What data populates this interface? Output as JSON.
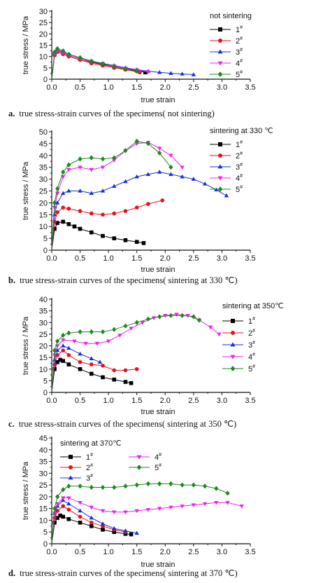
{
  "chart_data": [
    {
      "type": "line",
      "ylabel": "true stress / MPa",
      "xlabel": "true strain",
      "xlim": [
        0,
        3.5
      ],
      "ylim": [
        0,
        30
      ],
      "xticks": [
        "0.0",
        "0.5",
        "1.0",
        "1.5",
        "2.0",
        "2.5",
        "3.0",
        "3.5"
      ],
      "yticks": [
        "0",
        "5",
        "10",
        "15",
        "20",
        "25",
        "30"
      ],
      "legend_title": "not sintering",
      "legend_position": "top-right",
      "caption_label": "a.",
      "caption": "true stress-strain curves of the specimens( not sintering)",
      "series": [
        {
          "name": "1",
          "x": [
            0.0,
            0.05,
            0.1,
            0.2,
            0.3,
            0.5,
            0.7,
            0.9,
            1.1,
            1.3,
            1.5,
            1.65
          ],
          "y": [
            0,
            11.0,
            12.5,
            11.5,
            10.5,
            9.0,
            7.5,
            6.5,
            5.5,
            4.5,
            3.8,
            3.0
          ]
        },
        {
          "name": "2",
          "x": [
            0.0,
            0.05,
            0.1,
            0.2,
            0.3,
            0.5,
            0.7,
            0.9,
            1.1,
            1.3,
            1.55
          ],
          "y": [
            0,
            10.5,
            12.0,
            11.0,
            10.0,
            8.5,
            7.0,
            6.0,
            5.0,
            4.2,
            3.0
          ]
        },
        {
          "name": "3",
          "x": [
            0.0,
            0.05,
            0.1,
            0.2,
            0.3,
            0.5,
            0.7,
            0.9,
            1.1,
            1.3,
            1.5,
            1.7,
            1.9,
            2.1,
            2.3,
            2.5
          ],
          "y": [
            0,
            11.5,
            13.0,
            12.0,
            11.0,
            9.5,
            8.0,
            7.0,
            6.0,
            5.0,
            4.2,
            3.5,
            3.0,
            2.6,
            2.3,
            2.0
          ]
        },
        {
          "name": "4",
          "x": [
            0.0,
            0.05,
            0.1,
            0.2,
            0.3,
            0.5,
            0.7,
            0.9,
            1.1,
            1.3,
            1.5,
            1.7
          ],
          "y": [
            0,
            11.0,
            12.5,
            11.5,
            10.5,
            9.0,
            7.8,
            6.8,
            5.8,
            4.8,
            4.0,
            3.2
          ]
        },
        {
          "name": "5",
          "x": [
            0.0,
            0.05,
            0.1,
            0.2,
            0.3,
            0.5,
            0.7,
            0.9,
            1.1,
            1.3,
            1.5
          ],
          "y": [
            0,
            12.0,
            13.5,
            12.5,
            11.0,
            9.5,
            8.0,
            6.8,
            5.5,
            4.5,
            3.5
          ]
        }
      ]
    },
    {
      "type": "line",
      "ylabel": "true stress / MPa",
      "xlabel": "true strain",
      "xlim": [
        0,
        3.5
      ],
      "ylim": [
        0,
        50
      ],
      "xticks": [
        "0.0",
        "0.5",
        "1.0",
        "1.5",
        "2.0",
        "2.5",
        "3.0",
        "3.5"
      ],
      "yticks": [
        "0",
        "5",
        "10",
        "15",
        "20",
        "25",
        "30",
        "35",
        "40",
        "45",
        "50"
      ],
      "legend_title": "sintering at 330 ℃",
      "legend_position": "top-right",
      "caption_label": "b.",
      "caption": "true stress-strain curves of the specimens( sintering at 330 ℃)",
      "series": [
        {
          "name": "1",
          "x": [
            0.0,
            0.05,
            0.1,
            0.2,
            0.3,
            0.4,
            0.5,
            0.7,
            0.9,
            1.1,
            1.3,
            1.5,
            1.62
          ],
          "y": [
            0,
            9.0,
            11.5,
            12.0,
            11.0,
            10.0,
            9.0,
            7.5,
            6.0,
            5.0,
            4.2,
            3.5,
            3.0
          ]
        },
        {
          "name": "2",
          "x": [
            0.0,
            0.05,
            0.1,
            0.2,
            0.3,
            0.5,
            0.7,
            0.9,
            1.1,
            1.3,
            1.5,
            1.7,
            1.95
          ],
          "y": [
            0,
            12.0,
            16.0,
            18.0,
            17.5,
            16.5,
            15.5,
            15.0,
            15.5,
            16.5,
            18.0,
            19.5,
            21.0
          ]
        },
        {
          "name": "3",
          "x": [
            0.0,
            0.05,
            0.1,
            0.2,
            0.3,
            0.5,
            0.7,
            0.9,
            1.1,
            1.3,
            1.5,
            1.7,
            1.9,
            2.1,
            2.3,
            2.5,
            2.7,
            2.9,
            3.08
          ],
          "y": [
            0,
            15.0,
            20.0,
            24.0,
            25.0,
            25.0,
            24.0,
            25.0,
            27.0,
            29.0,
            31.0,
            32.0,
            33.0,
            32.0,
            31.0,
            30.0,
            28.0,
            25.5,
            23.0
          ]
        },
        {
          "name": "4",
          "x": [
            0.0,
            0.05,
            0.1,
            0.2,
            0.3,
            0.5,
            0.7,
            0.9,
            1.1,
            1.3,
            1.5,
            1.7,
            1.9,
            2.1,
            2.3
          ],
          "y": [
            0,
            18.0,
            24.0,
            31.0,
            34.0,
            35.0,
            34.0,
            35.0,
            38.0,
            42.0,
            45.0,
            45.5,
            43.0,
            40.0,
            35.0
          ]
        },
        {
          "name": "5",
          "x": [
            0.0,
            0.05,
            0.1,
            0.2,
            0.3,
            0.5,
            0.7,
            0.9,
            1.1,
            1.3,
            1.5,
            1.7,
            1.9,
            2.1
          ],
          "y": [
            0,
            20.0,
            26.0,
            33.0,
            36.0,
            38.5,
            39.0,
            38.5,
            39.0,
            42.0,
            46.0,
            45.0,
            41.0,
            35.0
          ]
        }
      ]
    },
    {
      "type": "line",
      "ylabel": "true stress / MPa",
      "xlabel": "true strain",
      "xlim": [
        0,
        3.5
      ],
      "ylim": [
        0,
        40
      ],
      "xticks": [
        "0.0",
        "0.5",
        "1.0",
        "1.5",
        "2.0",
        "2.5",
        "3.0",
        "3.5"
      ],
      "yticks": [
        "0",
        "5",
        "10",
        "15",
        "20",
        "25",
        "30",
        "35",
        "40"
      ],
      "legend_title": "sintering at 350℃",
      "legend_position": "right",
      "caption_label": "c.",
      "caption": "true stress-strain curves of the specimens( sintering at 350 ℃)",
      "series": [
        {
          "name": "1",
          "x": [
            0.0,
            0.05,
            0.1,
            0.15,
            0.2,
            0.3,
            0.5,
            0.7,
            0.9,
            1.1,
            1.3,
            1.4
          ],
          "y": [
            0,
            10.0,
            13.0,
            14.0,
            13.5,
            12.0,
            10.0,
            8.0,
            6.5,
            5.5,
            4.5,
            4.0
          ]
        },
        {
          "name": "2",
          "x": [
            0.0,
            0.05,
            0.1,
            0.2,
            0.3,
            0.5,
            0.7,
            0.9,
            1.1,
            1.3,
            1.5
          ],
          "y": [
            0,
            12.0,
            16.0,
            18.0,
            16.0,
            13.0,
            12.0,
            11.5,
            9.5,
            9.5,
            10.0
          ]
        },
        {
          "name": "3",
          "x": [
            0.0,
            0.05,
            0.1,
            0.2,
            0.3,
            0.5,
            0.7,
            0.85
          ],
          "y": [
            0,
            14.0,
            18.0,
            20.0,
            19.0,
            16.5,
            14.5,
            13.0
          ]
        },
        {
          "name": "4",
          "x": [
            0.0,
            0.05,
            0.1,
            0.2,
            0.4,
            0.6,
            0.8,
            1.0,
            1.2,
            1.4,
            1.6,
            1.8,
            2.0,
            2.2,
            2.4,
            2.6,
            2.8,
            2.95
          ],
          "y": [
            0,
            16.0,
            20.0,
            22.5,
            22.0,
            21.0,
            21.0,
            22.0,
            24.5,
            27.5,
            30.0,
            32.0,
            33.0,
            33.5,
            33.0,
            31.0,
            28.0,
            25.0
          ]
        },
        {
          "name": "5",
          "x": [
            0.0,
            0.05,
            0.1,
            0.2,
            0.3,
            0.5,
            0.7,
            0.9,
            1.1,
            1.3,
            1.5,
            1.7,
            1.9,
            2.1,
            2.3,
            2.5,
            2.6
          ],
          "y": [
            0,
            18.0,
            22.0,
            24.5,
            25.5,
            26.0,
            26.0,
            26.0,
            27.0,
            28.5,
            30.0,
            31.5,
            32.5,
            33.0,
            33.0,
            32.5,
            31.0
          ]
        }
      ]
    },
    {
      "type": "line",
      "ylabel": "true stress / MPa",
      "xlabel": "true strain",
      "xlim": [
        0,
        3.5
      ],
      "ylim": [
        0,
        45
      ],
      "xticks": [
        "0.0",
        "0.5",
        "1.0",
        "1.5",
        "2.0",
        "2.5",
        "3.0",
        "3.5"
      ],
      "yticks": [
        "0",
        "5",
        "10",
        "15",
        "20",
        "25",
        "30",
        "35",
        "40",
        "45"
      ],
      "legend_title": "sintering at 370℃",
      "legend_position": "top-left",
      "caption_label": "d.",
      "caption": "true stress-strain curves of the specimens( sintering at 370 ℃)",
      "series": [
        {
          "name": "1",
          "x": [
            0.0,
            0.05,
            0.1,
            0.15,
            0.2,
            0.3,
            0.5,
            0.7,
            0.9,
            1.1,
            1.3,
            1.4
          ],
          "y": [
            0,
            9.0,
            11.0,
            12.0,
            11.5,
            10.5,
            9.0,
            7.5,
            6.0,
            5.0,
            4.2,
            4.0
          ]
        },
        {
          "name": "2",
          "x": [
            0.0,
            0.05,
            0.1,
            0.2,
            0.3,
            0.5,
            0.7,
            0.9,
            1.1,
            1.3
          ],
          "y": [
            0,
            11.0,
            14.0,
            16.0,
            14.5,
            11.5,
            9.0,
            7.5,
            6.0,
            5.0
          ]
        },
        {
          "name": "3",
          "x": [
            0.0,
            0.05,
            0.1,
            0.2,
            0.3,
            0.5,
            0.7,
            0.9,
            1.1,
            1.3,
            1.5
          ],
          "y": [
            0,
            13.0,
            16.0,
            18.5,
            17.0,
            14.0,
            11.0,
            8.5,
            6.5,
            5.5,
            4.5
          ]
        },
        {
          "name": "4",
          "x": [
            0.0,
            0.05,
            0.1,
            0.2,
            0.3,
            0.5,
            0.7,
            0.9,
            1.1,
            1.3,
            1.5,
            1.7,
            1.9,
            2.1,
            2.3,
            2.5,
            2.7,
            2.9,
            3.1,
            3.35
          ],
          "y": [
            0,
            13.0,
            17.0,
            19.5,
            19.5,
            17.5,
            15.5,
            14.0,
            13.5,
            13.5,
            14.0,
            14.5,
            15.0,
            15.5,
            16.0,
            16.5,
            17.0,
            17.5,
            17.5,
            16.0
          ]
        },
        {
          "name": "5",
          "x": [
            0.0,
            0.05,
            0.1,
            0.2,
            0.3,
            0.5,
            0.7,
            0.9,
            1.1,
            1.3,
            1.5,
            1.7,
            1.9,
            2.1,
            2.3,
            2.5,
            2.7,
            2.9,
            3.1
          ],
          "y": [
            0,
            15.0,
            20.0,
            23.0,
            24.5,
            24.5,
            24.0,
            24.0,
            24.0,
            24.5,
            25.0,
            25.5,
            25.5,
            25.5,
            25.0,
            25.0,
            24.5,
            23.5,
            21.5
          ]
        }
      ]
    }
  ],
  "styles": [
    {
      "color": "#000000",
      "marker": "square"
    },
    {
      "color": "#e8101a",
      "marker": "circle"
    },
    {
      "color": "#1530d8",
      "marker": "triangle-up"
    },
    {
      "color": "#f020e8",
      "marker": "triangle-down"
    },
    {
      "color": "#1a8a1a",
      "marker": "diamond"
    }
  ]
}
